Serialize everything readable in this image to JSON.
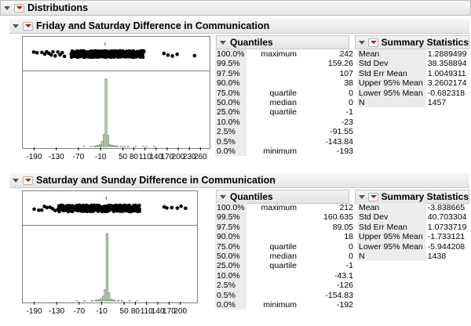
{
  "title": "Distributions",
  "panels": [
    {
      "title": "Friday and Saturday Difference in Communication",
      "quantiles_title": "Quantiles",
      "quantiles": [
        {
          "pct": "100.0%",
          "label": "maximum",
          "value": "242"
        },
        {
          "pct": "99.5%",
          "label": "",
          "value": "159.26"
        },
        {
          "pct": "97.5%",
          "label": "",
          "value": "107"
        },
        {
          "pct": "90.0%",
          "label": "",
          "value": "38"
        },
        {
          "pct": "75.0%",
          "label": "quartile",
          "value": "0"
        },
        {
          "pct": "50.0%",
          "label": "median",
          "value": "0"
        },
        {
          "pct": "25.0%",
          "label": "quartile",
          "value": "-1"
        },
        {
          "pct": "10.0%",
          "label": "",
          "value": "-23"
        },
        {
          "pct": "2.5%",
          "label": "",
          "value": "-91.55"
        },
        {
          "pct": "0.5%",
          "label": "",
          "value": "-143.84"
        },
        {
          "pct": "0.0%",
          "label": "minimum",
          "value": "-193"
        }
      ],
      "summary_title": "Summary Statistics",
      "summary": [
        {
          "label": "Mean",
          "value": "1.2889499"
        },
        {
          "label": "Std Dev",
          "value": "38.358894"
        },
        {
          "label": "Std Err Mean",
          "value": "1.0049311"
        },
        {
          "label": "Upper 95% Mean",
          "value": "3.2602174"
        },
        {
          "label": "Lower 95% Mean",
          "value": "-0.682318"
        },
        {
          "label": "N",
          "value": "1457"
        }
      ],
      "chart_data": {
        "type": "bar",
        "xlim": [
          -210,
          270
        ],
        "ticks": [
          -190,
          -130,
          -70,
          -10,
          50,
          80,
          110,
          140,
          170,
          200,
          230,
          260
        ],
        "tick_labels": [
          "-190",
          "-130",
          "-70",
          "-10",
          "50 80",
          "110",
          "140",
          "170",
          "200",
          "230",
          "260"
        ],
        "tick_label_values": [
          -190,
          -130,
          -70,
          -10,
          65,
          110,
          140,
          170,
          200,
          230,
          260
        ],
        "bin_width": 5,
        "bins_start": [
          -60,
          -40,
          -30,
          -25,
          -20,
          -15,
          -10,
          -5,
          0,
          5,
          10,
          15,
          20,
          25,
          30,
          40,
          50,
          60,
          80,
          100,
          110,
          130
        ],
        "counts": [
          3,
          4,
          8,
          10,
          18,
          30,
          80,
          200,
          1100,
          180,
          30,
          20,
          15,
          10,
          8,
          6,
          5,
          4,
          3,
          3,
          2,
          2
        ],
        "ymax": 1150,
        "outliers_x": [
          -193,
          -184,
          -171,
          -163,
          -158,
          -152,
          -146,
          -141,
          -135,
          -128,
          -122,
          -116,
          -110,
          159,
          170,
          182,
          195,
          242
        ]
      }
    },
    {
      "title": "Saturday and Sunday Difference in Communication",
      "quantiles_title": "Quantiles",
      "quantiles": [
        {
          "pct": "100.0%",
          "label": "maximum",
          "value": "212"
        },
        {
          "pct": "99.5%",
          "label": "",
          "value": "160.635"
        },
        {
          "pct": "97.5%",
          "label": "",
          "value": "89.05"
        },
        {
          "pct": "90.0%",
          "label": "",
          "value": "18"
        },
        {
          "pct": "75.0%",
          "label": "quartile",
          "value": "0"
        },
        {
          "pct": "50.0%",
          "label": "median",
          "value": "0"
        },
        {
          "pct": "25.0%",
          "label": "quartile",
          "value": "-1"
        },
        {
          "pct": "10.0%",
          "label": "",
          "value": "-43.1"
        },
        {
          "pct": "2.5%",
          "label": "",
          "value": "-126"
        },
        {
          "pct": "0.5%",
          "label": "",
          "value": "-154.83"
        },
        {
          "pct": "0.0%",
          "label": "minimum",
          "value": "-192"
        }
      ],
      "summary_title": "Summary Statistics",
      "summary": [
        {
          "label": "Mean",
          "value": "-3.838665"
        },
        {
          "label": "Std Dev",
          "value": "40.703304"
        },
        {
          "label": "Std Err Mean",
          "value": "1.0733719"
        },
        {
          "label": "Upper 95% Mean",
          "value": "-1.733121"
        },
        {
          "label": "Lower 95% Mean",
          "value": "-5.944208"
        },
        {
          "label": "N",
          "value": "1438"
        }
      ],
      "chart_data": {
        "type": "bar",
        "xlim": [
          -210,
          230
        ],
        "ticks": [
          -190,
          -130,
          -70,
          -10,
          50,
          80,
          110,
          140,
          170,
          200
        ],
        "tick_labels": [
          "-190",
          "-130",
          "-70",
          "-10",
          "50",
          "80",
          "110",
          "140",
          "170",
          "200"
        ],
        "tick_label_values": [
          -190,
          -130,
          -70,
          -10,
          50,
          80,
          110,
          140,
          170,
          200
        ],
        "bin_width": 5,
        "bins_start": [
          -80,
          -60,
          -40,
          -30,
          -25,
          -20,
          -15,
          -10,
          -5,
          0,
          5,
          10,
          15,
          20,
          30,
          40,
          60,
          80
        ],
        "counts": [
          3,
          4,
          6,
          10,
          12,
          20,
          35,
          70,
          170,
          1000,
          120,
          25,
          15,
          10,
          8,
          5,
          4,
          3
        ],
        "ymax": 1050,
        "outliers_x": [
          -192,
          -180,
          -172,
          -165,
          -158,
          -150,
          -143,
          -136,
          -128,
          -120,
          155,
          162,
          175,
          190,
          200,
          212
        ]
      }
    }
  ]
}
